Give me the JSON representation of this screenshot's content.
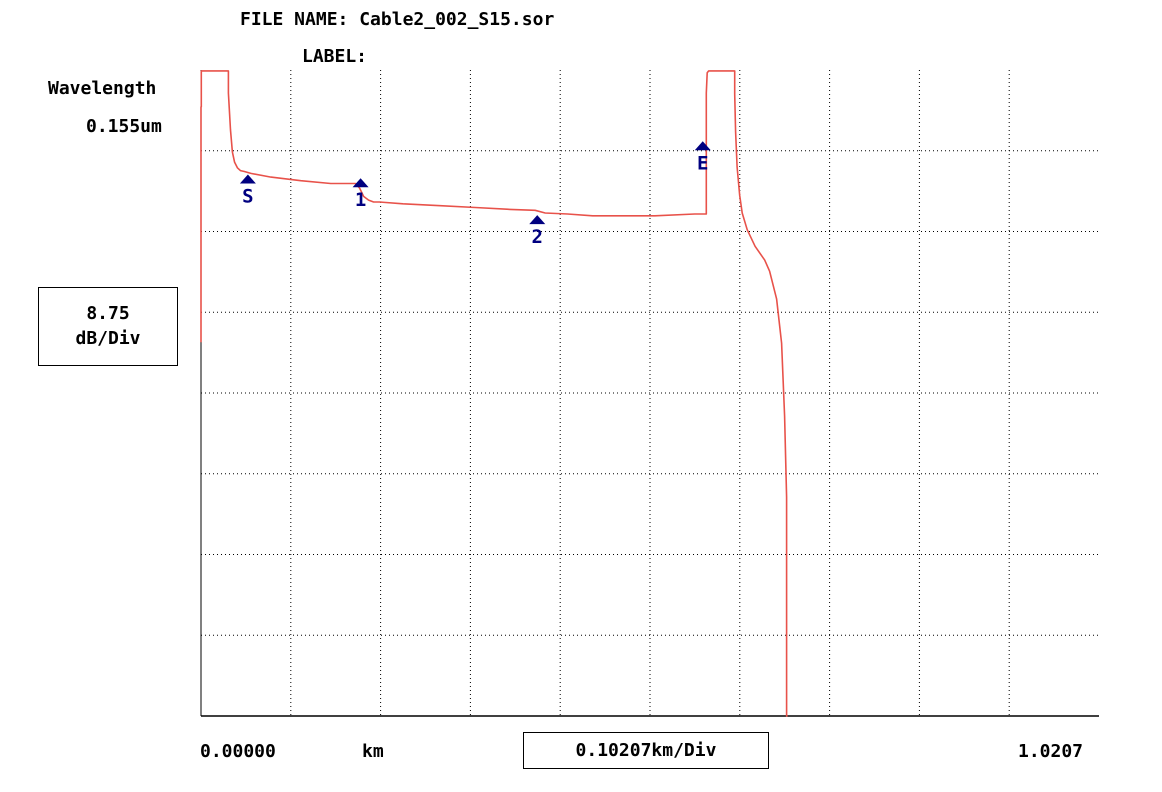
{
  "header": {
    "file_name_label": "FILE NAME:",
    "file_name": "Cable2_002_S15.sor",
    "label_label": "LABEL:",
    "label_value": ""
  },
  "y_axis": {
    "title": "Wavelength",
    "value": "0.155um",
    "scale_value": "8.75",
    "scale_unit": "dB/Div"
  },
  "x_axis": {
    "start": "0.00000",
    "unit": "km",
    "div_label": "0.10207km/Div",
    "end": "1.0207"
  },
  "colors": {
    "trace": "#e8524a",
    "marker": "#000080",
    "grid": "#000000",
    "background": "#ffffff"
  },
  "chart_data": {
    "type": "line",
    "title": "",
    "xlabel": "km",
    "ylabel": "dB/Div",
    "xlim": [
      0,
      1.0207
    ],
    "ylim": [
      -70,
      0
    ],
    "x_divisions": 10,
    "y_divisions": 8,
    "grid": true,
    "x_per_div_km": 0.10207,
    "y_per_div_db": 8.75,
    "series": [
      {
        "x": [
          0.0,
          0.0,
          0.0003,
          0.0003,
          0.01,
          0.0312,
          0.0312,
          0.0335,
          0.0357,
          0.0382,
          0.0414,
          0.0448,
          0.0493,
          0.0567,
          0.0794,
          0.1134,
          0.1474,
          0.1757,
          0.1803,
          0.1848,
          0.1905,
          0.1962,
          0.2029,
          0.2296,
          0.2721,
          0.3118,
          0.3515,
          0.3798,
          0.3912,
          0.4167,
          0.4451,
          0.4819,
          0.5159,
          0.5613,
          0.5743,
          0.5743,
          0.5754,
          0.5771,
          0.6066,
          0.6066,
          0.6077,
          0.6094,
          0.6123,
          0.6151,
          0.6208,
          0.6298,
          0.6407,
          0.6463,
          0.6542,
          0.6599,
          0.6633,
          0.6656,
          0.6656,
          0.6667
        ],
        "y": [
          -29.5,
          -4.0,
          -4.0,
          -0.1,
          -0.1,
          -0.1,
          -2.5,
          -6.5,
          -8.9,
          -10.0,
          -10.6,
          -10.9,
          -11.0,
          -11.2,
          -11.6,
          -12.0,
          -12.3,
          -12.3,
          -12.8,
          -13.7,
          -14.1,
          -14.3,
          -14.3,
          -14.5,
          -14.7,
          -14.9,
          -15.1,
          -15.2,
          -15.5,
          -15.6,
          -15.8,
          -15.8,
          -15.8,
          -15.6,
          -15.6,
          -2.5,
          -0.3,
          -0.1,
          -0.1,
          -2.6,
          -6.7,
          -10.5,
          -13.6,
          -15.5,
          -17.3,
          -19.1,
          -20.6,
          -21.8,
          -24.8,
          -29.6,
          -37.5,
          -46.3,
          -70.0,
          -70.0
        ],
        "approximate": true
      }
    ],
    "markers": [
      {
        "label": "S",
        "x": 0.0533,
        "y": -12.3
      },
      {
        "label": "1",
        "x": 0.1814,
        "y": -12.7
      },
      {
        "label": "2",
        "x": 0.3822,
        "y": -16.7
      },
      {
        "label": "E",
        "x": 0.5703,
        "y": -8.7
      }
    ]
  }
}
